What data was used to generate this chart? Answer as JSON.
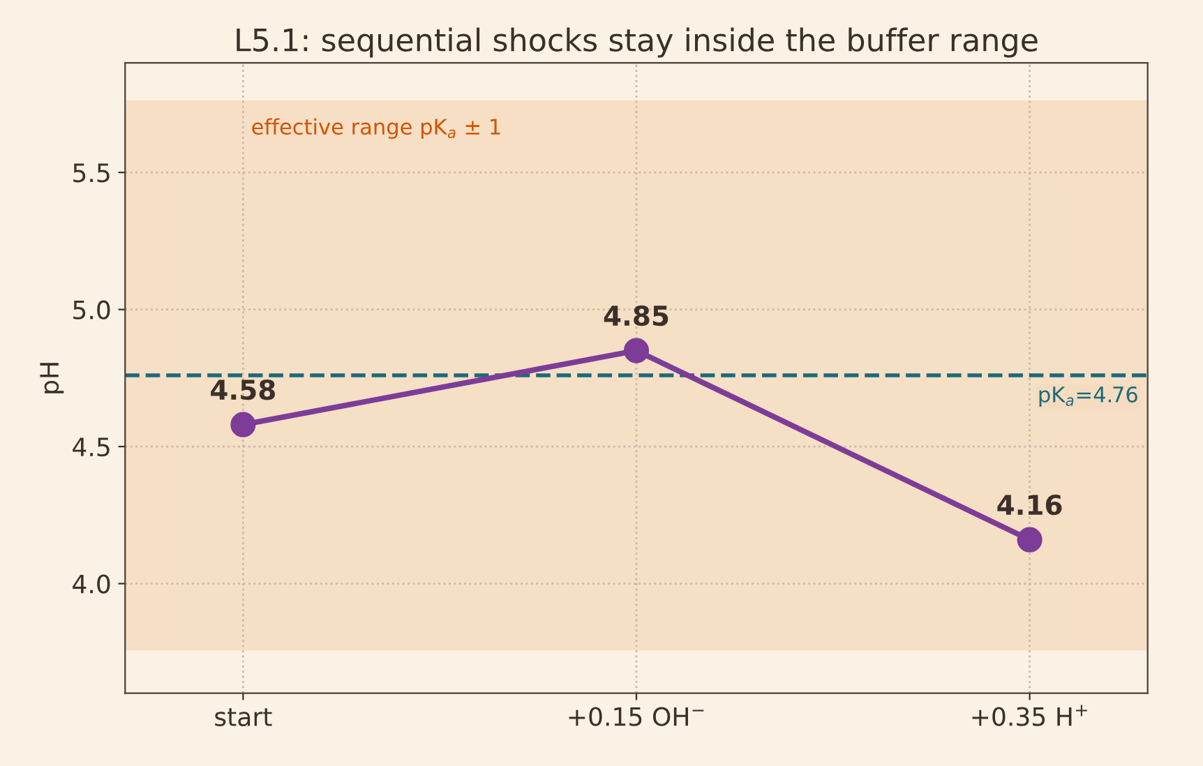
{
  "chart_data": {
    "type": "line",
    "title": "L5.1: sequential shocks stay inside the buffer range",
    "ylabel": "pH",
    "categories": [
      "start",
      "+0.15 OH$^{−}$",
      "+0.35 H$^{+}$"
    ],
    "series": [
      {
        "color": "#7d3c98",
        "values": [
          4.58,
          4.85,
          4.16
        ]
      }
    ],
    "ylim": [
      3.6,
      5.9
    ],
    "yticks": [
      {
        "value": 4,
        "label": "4.0"
      },
      4.5,
      {
        "value": 5,
        "label": "5.0"
      },
      5.5
    ],
    "bands": [
      {
        "axis": "y",
        "from": 3.76,
        "to": 5.76,
        "label": "effective range pK$_{a}$ ± 1",
        "color": "#f5dcc0"
      }
    ],
    "ref_lines": [
      {
        "axis": "y",
        "value": 4.76,
        "label": "pK$_{a}$=4.76",
        "color": "#1b6a7a",
        "line_style": "dashed"
      }
    ],
    "grid": true,
    "marker": "circle",
    "line_style": "solid",
    "data_labels": true,
    "legend": false
  }
}
